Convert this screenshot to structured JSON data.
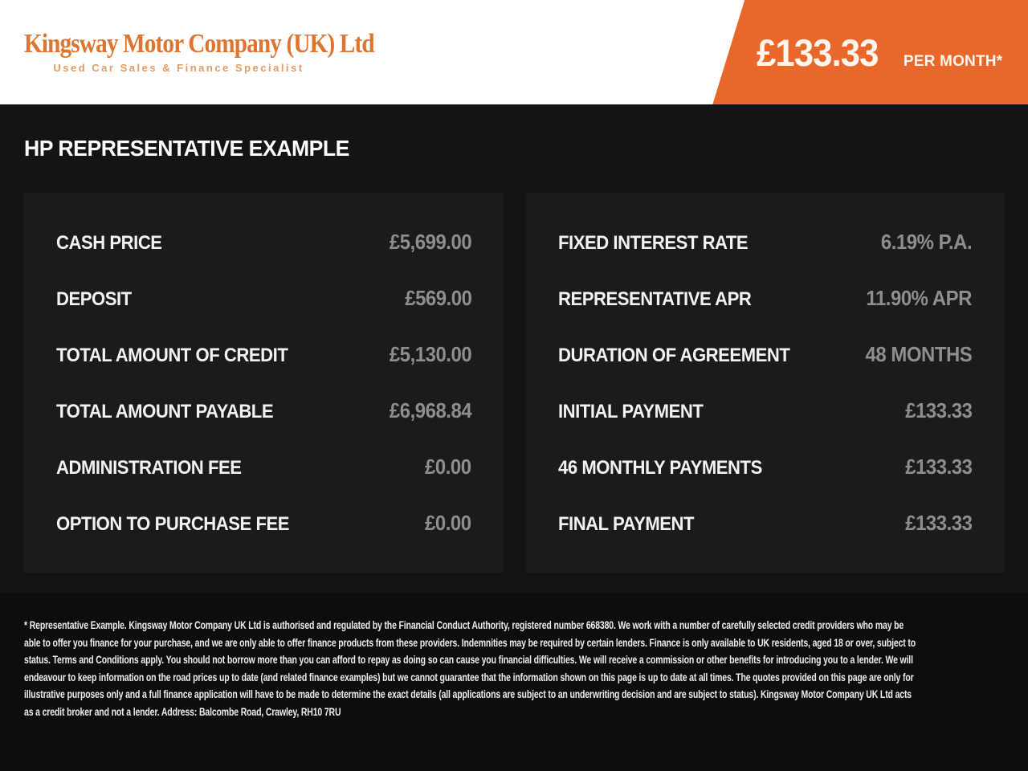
{
  "header": {
    "logo": {
      "name": "Kingsway Motor Company (UK) Ltd",
      "tagline": "Used Car Sales & Finance Specialist"
    },
    "price_banner": {
      "amount": "£133.33",
      "period": "PER MONTH*"
    }
  },
  "page": {
    "title": "HP REPRESENTATIVE EXAMPLE"
  },
  "panels": [
    {
      "name": "left",
      "rows": [
        {
          "label": "CASH PRICE",
          "value": "£5,699.00"
        },
        {
          "label": "DEPOSIT",
          "value": "£569.00"
        },
        {
          "label": "TOTAL AMOUNT OF CREDIT",
          "value": "£5,130.00"
        },
        {
          "label": "TOTAL AMOUNT PAYABLE",
          "value": "£6,968.84"
        },
        {
          "label": "ADMINISTRATION FEE",
          "value": "£0.00"
        },
        {
          "label": "OPTION TO PURCHASE FEE",
          "value": "£0.00"
        }
      ]
    },
    {
      "name": "right",
      "rows": [
        {
          "label": "FIXED INTEREST RATE",
          "value": "6.19% P.A."
        },
        {
          "label": "REPRESENTATIVE APR",
          "value": "11.90% APR"
        },
        {
          "label": "DURATION OF AGREEMENT",
          "value": "48 MONTHS"
        },
        {
          "label": "INITIAL PAYMENT",
          "value": "£133.33"
        },
        {
          "label": "46 MONTHLY PAYMENTS",
          "value": "£133.33"
        },
        {
          "label": "FINAL PAYMENT",
          "value": "£133.33"
        }
      ]
    }
  ],
  "footer": {
    "disclaimer": "* Representative Example. Kingsway Motor Company UK Ltd is authorised and regulated by the Financial Conduct Authority, registered number 668380. We work with a number of carefully selected credit providers who may be able to offer you finance for your purchase, and we are only able to offer finance products from these providers. Indemnities may be required by certain lenders. Finance is only available to UK residents, aged 18 or over, subject to status. Terms and Conditions apply. You should not borrow more than you can afford to repay as doing so can cause you financial difficulties. We will receive a commission or other benefits for introducing you to a lender. We will endeavour to keep information on the road prices up to date (and related finance examples) but we cannot guarantee that the information shown on this page is up to date at all times. The quotes provided on this page are only for illustrative purposes only and a full finance application will have to be made to determine the exact details (all applications are subject to an underwriting decision and are subject to status). Kingsway Motor Company UK Ltd acts as a credit broker and not a lender. Address: Balcombe Road, Crawley, RH10 7RU"
  },
  "colors": {
    "accent_orange": "#e8682c",
    "logo_orange": "#dd742f",
    "page_bg": "#141414",
    "panel_bg": "#1b1b1b",
    "footer_bg": "#0d0d0d",
    "value_gray": "#8e8e8e"
  }
}
